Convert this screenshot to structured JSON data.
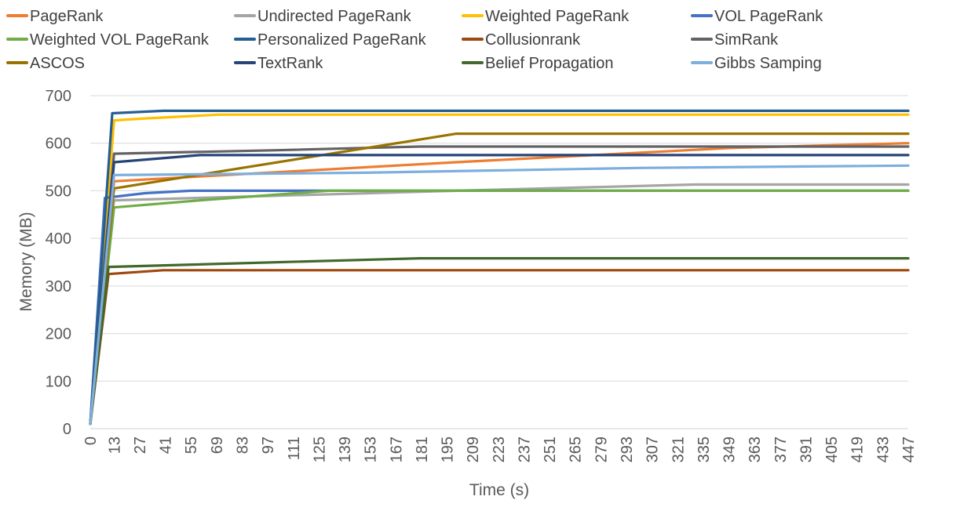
{
  "chart_data": {
    "type": "line",
    "title": "",
    "xlabel": "Time (s)",
    "ylabel": "Memory (MB)",
    "xlim": [
      0,
      447
    ],
    "ylim": [
      0,
      700
    ],
    "yticks": [
      0,
      100,
      200,
      300,
      400,
      500,
      600,
      700
    ],
    "xticks": [
      0,
      13,
      27,
      41,
      55,
      69,
      83,
      97,
      111,
      125,
      139,
      153,
      167,
      181,
      195,
      209,
      223,
      237,
      251,
      265,
      279,
      293,
      307,
      321,
      335,
      349,
      363,
      377,
      391,
      405,
      419,
      433,
      447
    ],
    "grid": "horizontal",
    "legend_position": "top",
    "series": [
      {
        "name": "PageRank",
        "color": "#ED7D31",
        "points": [
          [
            0,
            10
          ],
          [
            13,
            520
          ],
          [
            60,
            530
          ],
          [
            200,
            560
          ],
          [
            350,
            590
          ],
          [
            447,
            600
          ]
        ]
      },
      {
        "name": "Undirected PageRank",
        "color": "#A5A5A5",
        "points": [
          [
            0,
            10
          ],
          [
            13,
            480
          ],
          [
            60,
            485
          ],
          [
            200,
            500
          ],
          [
            330,
            513
          ],
          [
            447,
            513
          ]
        ]
      },
      {
        "name": "Weighted PageRank",
        "color": "#FFC000",
        "points": [
          [
            0,
            10
          ],
          [
            13,
            648
          ],
          [
            30,
            652
          ],
          [
            70,
            660
          ],
          [
            447,
            660
          ]
        ]
      },
      {
        "name": "VOL PageRank",
        "color": "#4472C4",
        "points": [
          [
            0,
            10
          ],
          [
            8,
            485
          ],
          [
            30,
            495
          ],
          [
            55,
            500
          ],
          [
            447,
            500
          ]
        ]
      },
      {
        "name": "Weighted VOL PageRank",
        "color": "#70AD47",
        "points": [
          [
            0,
            10
          ],
          [
            13,
            465
          ],
          [
            60,
            480
          ],
          [
            130,
            500
          ],
          [
            447,
            500
          ]
        ]
      },
      {
        "name": "Personalized PageRank",
        "color": "#255E91",
        "points": [
          [
            0,
            10
          ],
          [
            12,
            663
          ],
          [
            40,
            668
          ],
          [
            447,
            668
          ]
        ]
      },
      {
        "name": "Collusionrank",
        "color": "#9E480E",
        "points": [
          [
            0,
            10
          ],
          [
            10,
            325
          ],
          [
            40,
            333
          ],
          [
            447,
            333
          ]
        ]
      },
      {
        "name": "SimRank",
        "color": "#636363",
        "points": [
          [
            0,
            10
          ],
          [
            13,
            578
          ],
          [
            100,
            585
          ],
          [
            180,
            593
          ],
          [
            447,
            593
          ]
        ]
      },
      {
        "name": "ASCOS",
        "color": "#997300",
        "points": [
          [
            0,
            10
          ],
          [
            13,
            505
          ],
          [
            200,
            620
          ],
          [
            447,
            620
          ]
        ]
      },
      {
        "name": "TextRank",
        "color": "#264478",
        "points": [
          [
            0,
            10
          ],
          [
            13,
            560
          ],
          [
            60,
            575
          ],
          [
            447,
            575
          ]
        ]
      },
      {
        "name": "Belief Propagation",
        "color": "#43682B",
        "points": [
          [
            0,
            10
          ],
          [
            10,
            340
          ],
          [
            180,
            358
          ],
          [
            447,
            358
          ]
        ]
      },
      {
        "name": "Gibbs Samping",
        "color": "#7CAFDD",
        "points": [
          [
            0,
            10
          ],
          [
            13,
            533
          ],
          [
            150,
            538
          ],
          [
            300,
            548
          ],
          [
            447,
            553
          ]
        ]
      }
    ]
  }
}
